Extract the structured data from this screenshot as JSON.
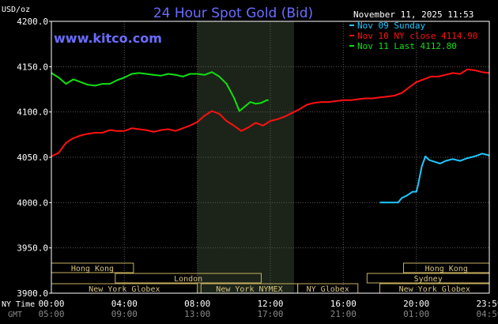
{
  "chart_data": {
    "type": "line",
    "title": "24 Hour Spot Gold (Bid)",
    "watermark": "www.kitco.com",
    "timestamp": "November 11, 2025 11:53",
    "ylabel": "USD/oz",
    "ylim": [
      3900,
      4200
    ],
    "yticks": [
      "4200.0",
      "4150.0",
      "4100.0",
      "4050.0",
      "4000.0",
      "3950.0",
      "3900.0"
    ],
    "ytick_values": [
      4200,
      4150,
      4100,
      4050,
      4000,
      3950,
      3900
    ],
    "xlim": [
      0,
      24
    ],
    "x_unit": "hours NY time",
    "xticks_ny": [
      "00:00",
      "04:00",
      "08:00",
      "12:00",
      "16:00",
      "20:00",
      "23:59"
    ],
    "xticks_gmt": [
      "05:00",
      "09:00",
      "13:00",
      "17:00",
      "21:00",
      "01:00",
      "04:59"
    ],
    "xtick_values": [
      0,
      4,
      8,
      12,
      16,
      20,
      24
    ],
    "row_labels": {
      "ny": "NY Time",
      "gmt": "GMT"
    },
    "highlight_hours": [
      8,
      13.3
    ],
    "grid": true,
    "legend_position": "top-right",
    "series": [
      {
        "name": "Nov 09 Sunday",
        "color": "#1ec8ff",
        "x": [
          18,
          18.5,
          19.0,
          19.2,
          19.5,
          19.8,
          20.0,
          20.1,
          20.3,
          20.5,
          20.7,
          21.0,
          21.3,
          21.6,
          22.0,
          22.4,
          22.8,
          23.2,
          23.6,
          24.0
        ],
        "y": [
          4000,
          4000,
          4000,
          4005,
          4008,
          4012,
          4012,
          4020,
          4040,
          4051,
          4047,
          4045,
          4043,
          4046,
          4048,
          4046,
          4049,
          4051,
          4054,
          4052
        ]
      },
      {
        "name": "Nov 10 NY close 4114.90",
        "color": "#ff1010",
        "x": [
          0,
          0.4,
          0.8,
          1.2,
          1.6,
          2.0,
          2.4,
          2.8,
          3.2,
          3.6,
          4.0,
          4.4,
          4.8,
          5.2,
          5.6,
          6.0,
          6.4,
          6.8,
          7.2,
          7.6,
          8.0,
          8.4,
          8.8,
          9.2,
          9.6,
          10.0,
          10.4,
          10.8,
          11.2,
          11.6,
          12.0,
          12.4,
          12.8,
          13.2,
          13.6,
          14.0,
          14.4,
          14.8,
          15.2,
          15.6,
          16.0,
          16.4,
          16.8,
          17.2,
          17.6,
          18.0,
          18.4,
          18.8,
          19.2,
          19.6,
          20.0,
          20.4,
          20.8,
          21.2,
          21.6,
          22.0,
          22.4,
          22.8,
          23.2,
          23.6,
          24.0
        ],
        "y": [
          4051,
          4055,
          4066,
          4071,
          4074,
          4076,
          4077,
          4077,
          4080,
          4079,
          4079,
          4082,
          4081,
          4080,
          4078,
          4080,
          4081,
          4079,
          4082,
          4085,
          4089,
          4096,
          4101,
          4098,
          4090,
          4085,
          4079,
          4083,
          4088,
          4085,
          4090,
          4092,
          4095,
          4099,
          4103,
          4108,
          4110,
          4111,
          4111,
          4112,
          4113,
          4113,
          4114,
          4115,
          4115,
          4116,
          4117,
          4118,
          4121,
          4127,
          4133,
          4136,
          4139,
          4139,
          4141,
          4143,
          4142,
          4147,
          4146,
          4144,
          4143
        ]
      },
      {
        "name": "Nov 11 Last 4112.80",
        "color": "#10e010",
        "x": [
          0,
          0.4,
          0.8,
          1.2,
          1.6,
          2.0,
          2.4,
          2.8,
          3.2,
          3.6,
          4.0,
          4.4,
          4.8,
          5.2,
          5.6,
          6.0,
          6.4,
          6.8,
          7.2,
          7.6,
          8.0,
          8.4,
          8.8,
          9.2,
          9.6,
          10.0,
          10.3,
          10.6,
          10.9,
          11.2,
          11.5,
          11.8,
          11.9
        ],
        "y": [
          4143,
          4138,
          4131,
          4136,
          4133,
          4130,
          4129,
          4131,
          4131,
          4135,
          4138,
          4142,
          4143,
          4142,
          4141,
          4140,
          4142,
          4141,
          4139,
          4142,
          4142,
          4141,
          4144,
          4139,
          4131,
          4116,
          4101,
          4106,
          4111,
          4109,
          4110,
          4113,
          4113
        ]
      }
    ],
    "markets": [
      {
        "name": "Hong Kong",
        "start": 0,
        "end": 4.5,
        "row": 0
      },
      {
        "name": "Hong Kong",
        "start": 19.3,
        "end": 24,
        "row": 0
      },
      {
        "name": "London",
        "start": 3.5,
        "end": 11.5,
        "row": 1
      },
      {
        "name": "Sydney",
        "start": 17.3,
        "end": 24,
        "row": 1
      },
      {
        "name": "New York Globex",
        "start": 0,
        "end": 8,
        "row": 2
      },
      {
        "name": "New York NYMEX",
        "start": 8.2,
        "end": 13.5,
        "row": 2
      },
      {
        "name": "NY Globex",
        "start": 13.5,
        "end": 16.8,
        "row": 2
      },
      {
        "name": "New York Globex",
        "start": 18,
        "end": 24,
        "row": 2
      }
    ]
  }
}
